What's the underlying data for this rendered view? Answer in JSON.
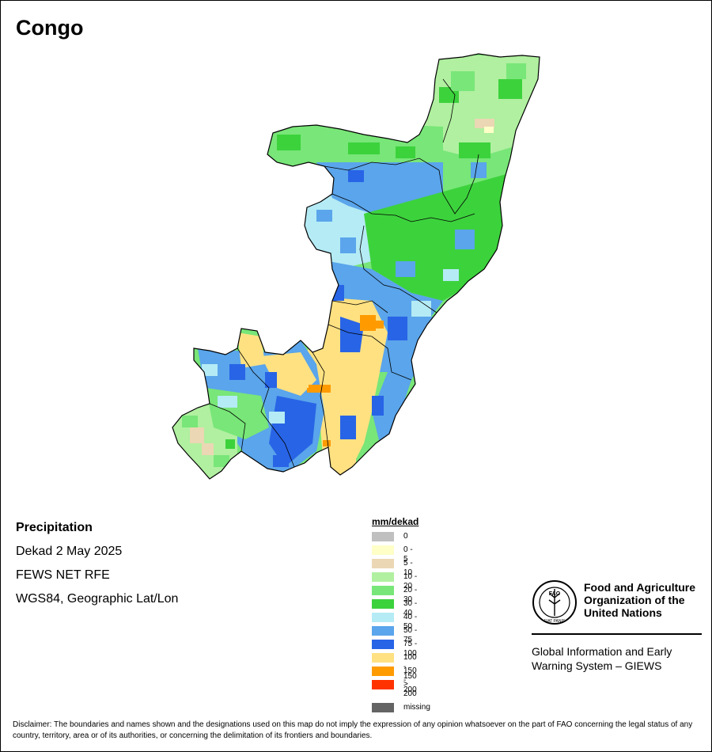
{
  "map": {
    "title": "Congo",
    "colors": {
      "boundary": "#000000",
      "fill": "#78e678"
    }
  },
  "info": {
    "lines": [
      "Precipitation",
      "Dekad 2 May 2025",
      "FEWS NET RFE",
      "WGS84, Geographic Lat/Lon"
    ]
  },
  "legend": {
    "title": "mm/dekad",
    "items": [
      {
        "label": "0",
        "color": "#c0c0c0"
      },
      {
        "label": "0 - 5",
        "color": "#ffffc8"
      },
      {
        "label": "5 - 10",
        "color": "#ebd7b4"
      },
      {
        "label": "10 - 20",
        "color": "#b0f0a0"
      },
      {
        "label": "20 - 30",
        "color": "#78e678"
      },
      {
        "label": "30 - 40",
        "color": "#3cd23c"
      },
      {
        "label": "40 - 50",
        "color": "#b4ebf5"
      },
      {
        "label": "50 - 75",
        "color": "#5aa5eb"
      },
      {
        "label": "75 - 100",
        "color": "#2864e6"
      },
      {
        "label": "100 - 150",
        "color": "#ffe182"
      },
      {
        "label": "150 - 200",
        "color": "#ff9b00"
      },
      {
        "label": "> 200",
        "color": "#ff3200"
      }
    ],
    "missing": {
      "label": "missing",
      "color": "#646464"
    }
  },
  "fao": {
    "emblem_text": "FAO",
    "emblem_motto": "FIAT PANIS",
    "name_lines": [
      "Food and Agriculture",
      "Organization of the",
      "United Nations"
    ],
    "giews_lines": [
      "Global Information and Early",
      "Warning System – GIEWS"
    ]
  },
  "disclaimer": "Disclaimer: The boundaries and names shown and the designations used on this map do not imply the expression of any opinion whatsoever on the part of FAO concerning the legal status of any country, territory, area or of its authorities, or concerning the delimitation of its frontiers and boundaries."
}
